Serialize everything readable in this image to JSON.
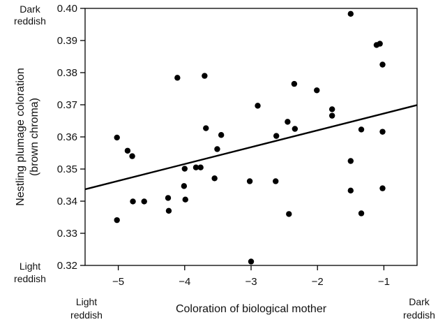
{
  "chart_data": {
    "type": "scatter",
    "xlabel": "Coloration of biological mother",
    "ylabel_line1": "Nestling plumage coloration",
    "ylabel_line2": "(brown chroma)",
    "xlim": [
      -5.5,
      -0.5
    ],
    "ylim": [
      0.32,
      0.4
    ],
    "x_ticks": [
      -5,
      -4,
      -3,
      -2,
      -1
    ],
    "x_tick_labels": [
      "−5",
      "−4",
      "−3",
      "−2",
      "−1"
    ],
    "y_ticks": [
      0.32,
      0.33,
      0.34,
      0.35,
      0.36,
      0.37,
      0.38,
      0.39,
      0.4
    ],
    "y_tick_labels": [
      "0.32",
      "0.33",
      "0.34",
      "0.35",
      "0.36",
      "0.37",
      "0.38",
      "0.39",
      "0.40"
    ],
    "grid": false,
    "trend_line": {
      "x": [
        -5.5,
        -0.5
      ],
      "y": [
        0.3437,
        0.3699
      ]
    },
    "corner_labels": {
      "y_top": [
        "Dark",
        "reddish"
      ],
      "y_bottom": [
        "Light",
        "reddish"
      ],
      "x_left": [
        "Light",
        "reddish"
      ],
      "x_right": [
        "Dark",
        "reddish"
      ]
    },
    "marker_color": "#000000",
    "points": [
      {
        "x": -5.02,
        "y": 0.3598
      },
      {
        "x": -5.02,
        "y": 0.3341
      },
      {
        "x": -4.86,
        "y": 0.3557
      },
      {
        "x": -4.79,
        "y": 0.354
      },
      {
        "x": -4.78,
        "y": 0.3399
      },
      {
        "x": -4.61,
        "y": 0.3399
      },
      {
        "x": -4.25,
        "y": 0.341
      },
      {
        "x": -4.24,
        "y": 0.337
      },
      {
        "x": -4.11,
        "y": 0.3784
      },
      {
        "x": -4.01,
        "y": 0.3447
      },
      {
        "x": -4.0,
        "y": 0.3501
      },
      {
        "x": -3.99,
        "y": 0.3405
      },
      {
        "x": -3.83,
        "y": 0.3505
      },
      {
        "x": -3.76,
        "y": 0.3505
      },
      {
        "x": -3.7,
        "y": 0.379
      },
      {
        "x": -3.68,
        "y": 0.3627
      },
      {
        "x": -3.55,
        "y": 0.3471
      },
      {
        "x": -3.51,
        "y": 0.3562
      },
      {
        "x": -3.45,
        "y": 0.3606
      },
      {
        "x": -3.02,
        "y": 0.3462
      },
      {
        "x": -3.0,
        "y": 0.3212
      },
      {
        "x": -2.9,
        "y": 0.3697
      },
      {
        "x": -2.63,
        "y": 0.3462
      },
      {
        "x": -2.62,
        "y": 0.3603
      },
      {
        "x": -2.45,
        "y": 0.3647
      },
      {
        "x": -2.43,
        "y": 0.336
      },
      {
        "x": -2.35,
        "y": 0.3765
      },
      {
        "x": -2.34,
        "y": 0.3625
      },
      {
        "x": -2.01,
        "y": 0.3745
      },
      {
        "x": -1.78,
        "y": 0.3686
      },
      {
        "x": -1.78,
        "y": 0.3666
      },
      {
        "x": -1.5,
        "y": 0.3983
      },
      {
        "x": -1.5,
        "y": 0.3525
      },
      {
        "x": -1.5,
        "y": 0.3433
      },
      {
        "x": -1.34,
        "y": 0.3623
      },
      {
        "x": -1.34,
        "y": 0.3362
      },
      {
        "x": -1.11,
        "y": 0.3886
      },
      {
        "x": -1.06,
        "y": 0.389
      },
      {
        "x": -1.02,
        "y": 0.3825
      },
      {
        "x": -1.02,
        "y": 0.3616
      },
      {
        "x": -1.02,
        "y": 0.344
      }
    ]
  }
}
